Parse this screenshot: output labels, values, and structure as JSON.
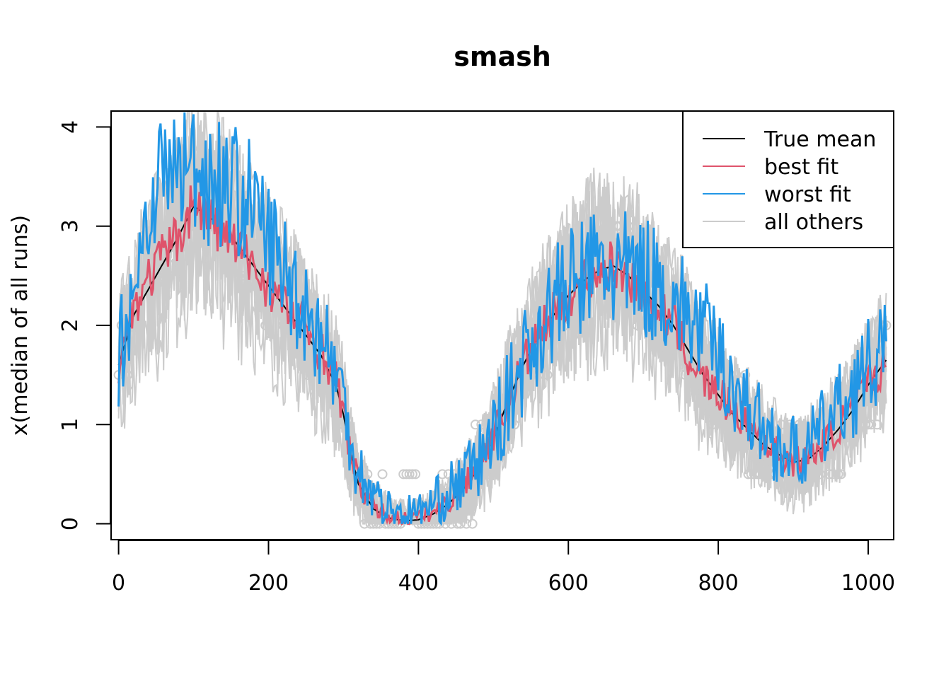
{
  "chart_data": {
    "type": "line",
    "title": "smash",
    "xlabel": "",
    "ylabel": "x(median of all runs)",
    "xlim": [
      -10,
      1034
    ],
    "ylim": [
      -0.16,
      4.16
    ],
    "x_ticks": [
      0,
      200,
      400,
      600,
      800,
      1000
    ],
    "y_ticks": [
      0,
      1,
      2,
      3,
      4
    ],
    "legend_position": "top-right",
    "legend": [
      {
        "label": "True mean",
        "color": "#000000"
      },
      {
        "label": "best fit",
        "color": "#DF536B"
      },
      {
        "label": "worst fit",
        "color": "#2297E6"
      },
      {
        "label": "all others",
        "color": "#CCCCCC"
      }
    ],
    "colors": {
      "true_mean": "#000000",
      "best_fit": "#DF536B",
      "worst_fit": "#2297E6",
      "others": "#CCCCCC",
      "points": "#CCCCCC"
    },
    "series": [
      {
        "name": "True mean",
        "x": [
          0,
          20,
          50,
          80,
          100,
          120,
          150,
          180,
          210,
          240,
          270,
          290,
          300,
          310,
          320,
          340,
          360,
          380,
          400,
          420,
          440,
          460,
          480,
          500,
          520,
          540,
          560,
          580,
          600,
          620,
          640,
          660,
          680,
          700,
          720,
          740,
          760,
          780,
          800,
          820,
          840,
          860,
          880,
          900,
          920,
          940,
          960,
          980,
          1000,
          1024
        ],
        "y": [
          1.6,
          2.1,
          2.5,
          2.9,
          3.2,
          3.1,
          2.9,
          2.6,
          2.3,
          2.0,
          1.7,
          1.4,
          1.1,
          0.7,
          0.4,
          0.15,
          0.06,
          0.03,
          0.04,
          0.1,
          0.2,
          0.35,
          0.55,
          0.85,
          1.25,
          1.6,
          1.9,
          2.1,
          2.3,
          2.45,
          2.55,
          2.6,
          2.5,
          2.35,
          2.2,
          2.0,
          1.75,
          1.5,
          1.3,
          1.1,
          0.95,
          0.8,
          0.7,
          0.62,
          0.65,
          0.78,
          0.95,
          1.15,
          1.4,
          1.65
        ]
      },
      {
        "name": "best fit",
        "x": [
          0,
          20,
          50,
          80,
          100,
          120,
          150,
          180,
          210,
          240,
          270,
          290,
          300,
          310,
          320,
          340,
          360,
          380,
          400,
          420,
          440,
          460,
          480,
          500,
          520,
          540,
          560,
          580,
          600,
          620,
          640,
          660,
          680,
          700,
          720,
          740,
          760,
          780,
          800,
          820,
          840,
          860,
          880,
          900,
          920,
          940,
          960,
          980,
          1000,
          1024
        ],
        "y": [
          1.6,
          2.2,
          2.6,
          2.9,
          3.25,
          3.1,
          2.85,
          2.6,
          2.3,
          2.05,
          1.75,
          1.45,
          1.1,
          0.7,
          0.4,
          0.17,
          0.08,
          0.05,
          0.06,
          0.12,
          0.22,
          0.38,
          0.58,
          0.9,
          1.25,
          1.6,
          1.9,
          2.1,
          2.3,
          2.45,
          2.55,
          2.6,
          2.5,
          2.35,
          2.2,
          2.0,
          1.7,
          1.45,
          1.3,
          1.15,
          1.0,
          0.85,
          0.72,
          0.63,
          0.66,
          0.8,
          0.97,
          1.18,
          1.42,
          1.62
        ]
      },
      {
        "name": "worst fit",
        "x": [
          0,
          20,
          50,
          80,
          100,
          120,
          150,
          180,
          210,
          240,
          270,
          290,
          300,
          310,
          320,
          340,
          360,
          380,
          400,
          420,
          440,
          460,
          480,
          500,
          520,
          540,
          560,
          580,
          600,
          620,
          640,
          660,
          680,
          700,
          720,
          740,
          760,
          780,
          800,
          820,
          840,
          860,
          880,
          900,
          920,
          940,
          960,
          980,
          1000,
          1024
        ],
        "y": [
          1.7,
          2.4,
          3.5,
          3.6,
          3.6,
          3.5,
          3.4,
          3.2,
          2.7,
          2.3,
          1.9,
          1.55,
          1.2,
          0.85,
          0.55,
          0.3,
          0.15,
          0.1,
          0.12,
          0.2,
          0.32,
          0.45,
          0.62,
          0.9,
          1.25,
          1.65,
          1.95,
          2.2,
          2.35,
          2.5,
          2.6,
          2.55,
          2.5,
          2.5,
          2.4,
          2.25,
          2.1,
          1.95,
          1.7,
          1.4,
          1.15,
          0.95,
          0.8,
          0.7,
          0.75,
          0.95,
          1.15,
          1.35,
          1.55,
          1.7
        ]
      }
    ],
    "others_runs": 12
  }
}
